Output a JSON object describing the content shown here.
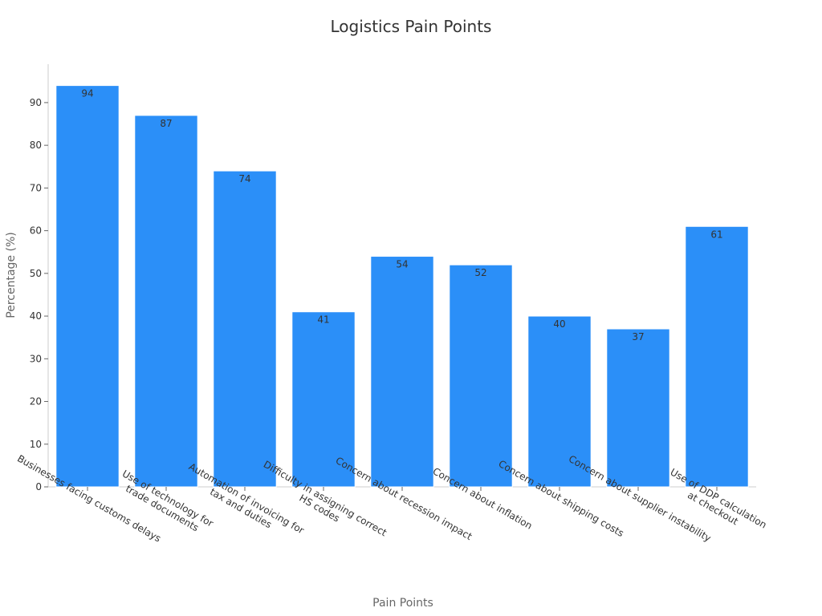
{
  "chart_data": {
    "type": "bar",
    "title": "Logistics Pain Points",
    "xlabel": "Pain Points",
    "ylabel": "Percentage (%)",
    "ylim": [
      0,
      99
    ],
    "yticks": [
      0,
      10,
      20,
      30,
      40,
      50,
      60,
      70,
      80,
      90
    ],
    "grid": false,
    "bar_color": "#2b8ff8",
    "categories": [
      [
        "Businesses facing customs delays"
      ],
      [
        "Use of technology for",
        "trade documents"
      ],
      [
        "Automation of invoicing for",
        "tax and duties"
      ],
      [
        "Difficulty in assigning correct",
        "HS codes"
      ],
      [
        "Concern about recession impact"
      ],
      [
        "Concern about inflation"
      ],
      [
        "Concern about shipping costs"
      ],
      [
        "Concern about supplier instability"
      ],
      [
        "Use of DDP calculation",
        "at checkout"
      ]
    ],
    "values": [
      94,
      87,
      74,
      41,
      54,
      52,
      40,
      37,
      61
    ]
  }
}
